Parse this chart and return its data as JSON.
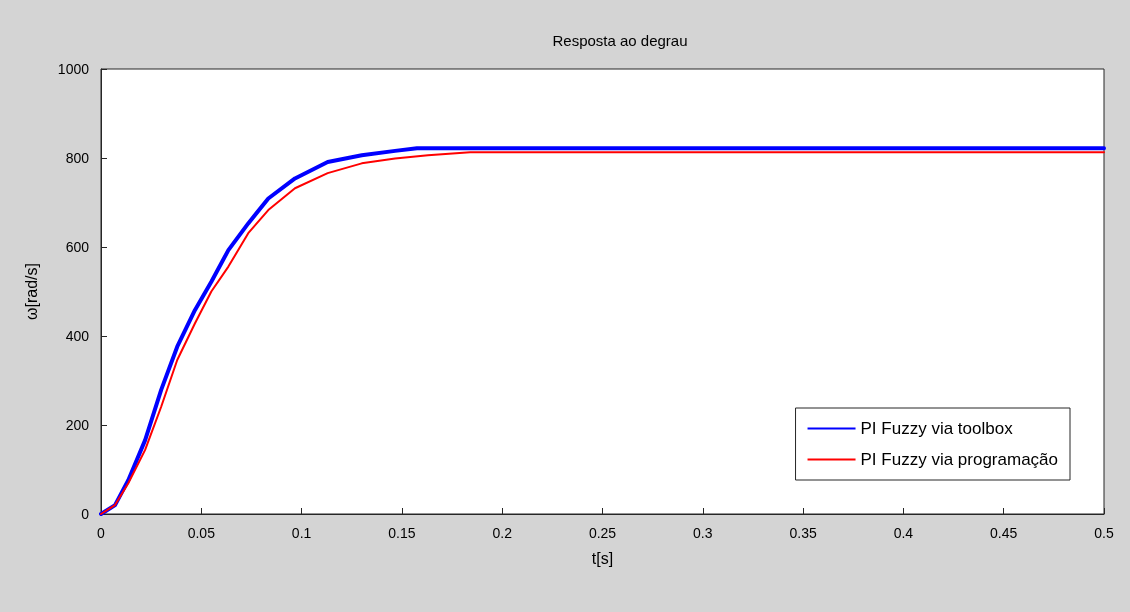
{
  "chart_data": {
    "type": "line",
    "title": "Resposta ao degrau",
    "xlabel": "t[s]",
    "ylabel": "ω[rad/s]",
    "xlim": [
      0,
      0.5
    ],
    "xticks": [
      0,
      0.05,
      0.1,
      0.15,
      0.2,
      0.25,
      0.3,
      0.35,
      0.4,
      0.45,
      0.5
    ],
    "ylim": [
      0,
      1000
    ],
    "yticks": [
      0,
      200,
      400,
      600,
      800,
      1000
    ],
    "grid": false,
    "legend": "bottom right",
    "marker": "none",
    "line_style": "solid",
    "series": [
      {
        "name": "PI Fuzzy via toolbox",
        "color": "#0000ff",
        "x": [
          0,
          0.007,
          0.0136,
          0.022,
          0.03,
          0.038,
          0.0468,
          0.055,
          0.0635,
          0.0734,
          0.0834,
          0.0967,
          0.113,
          0.13,
          0.1466,
          0.1575,
          0.24,
          0.5
        ],
        "values": [
          0,
          20,
          76,
          166,
          279,
          376,
          458,
          522,
          593,
          653,
          709,
          754,
          791,
          806,
          816,
          822,
          822,
          822
        ]
      },
      {
        "name": "PI Fuzzy via programação",
        "color": "#ff0000",
        "x": [
          0,
          0.007,
          0.0136,
          0.022,
          0.03,
          0.038,
          0.0468,
          0.055,
          0.0635,
          0.0734,
          0.0834,
          0.0967,
          0.113,
          0.13,
          0.1466,
          0.163,
          0.184,
          0.5
        ],
        "values": [
          0,
          20,
          69,
          144,
          241,
          346,
          428,
          500,
          556,
          631,
          683,
          732,
          766,
          788,
          799,
          806,
          813,
          813
        ]
      }
    ]
  }
}
